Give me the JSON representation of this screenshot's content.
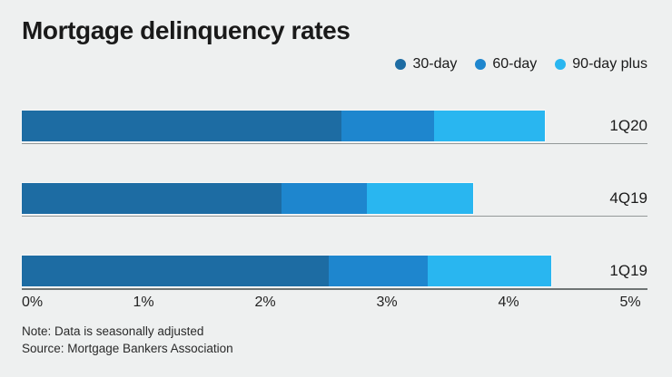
{
  "title": "Mortgage delinquency rates",
  "chart_data": {
    "type": "bar",
    "orientation": "horizontal",
    "stacked": true,
    "title": "Mortgage delinquency rates",
    "categories": [
      "1Q20",
      "4Q19",
      "1Q19"
    ],
    "series": [
      {
        "name": "30-day",
        "color": "#1d6ca3",
        "values": [
          2.67,
          2.17,
          2.56
        ]
      },
      {
        "name": "60-day",
        "color": "#1e86ce",
        "values": [
          0.77,
          0.71,
          0.83
        ]
      },
      {
        "name": "90-day plus",
        "color": "#29b6f0",
        "values": [
          0.93,
          0.89,
          1.03
        ]
      }
    ],
    "totals": [
      4.37,
      3.77,
      4.42
    ],
    "unit": "%",
    "xlim": [
      0,
      5
    ],
    "x_tick_labels": [
      "0%",
      "1%",
      "2%",
      "3%",
      "4%",
      "5%"
    ],
    "grid": false,
    "legend_position": "top-right"
  },
  "notes": {
    "note": "Note: Data is seasonally adjusted",
    "source": "Source: Mortgage Bankers Association"
  },
  "colors": {
    "background": "#eef0f0",
    "series_30_day": "#1d6ca3",
    "series_60_day": "#1e86ce",
    "series_90_day_plus": "#29b6f0",
    "row_baseline": "#939898",
    "x_axis_line": "#6e7474",
    "text": "#1a1a1a"
  }
}
